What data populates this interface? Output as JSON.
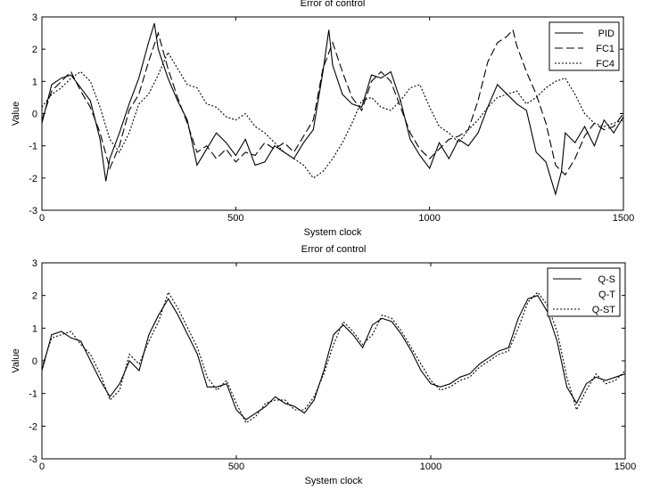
{
  "chart_data": [
    {
      "type": "line",
      "title": "Error of control",
      "xlabel": "System clock",
      "ylabel": "Value",
      "xlim": [
        0,
        1500
      ],
      "ylim": [
        -3,
        3
      ],
      "xticks": [
        0,
        500,
        1000,
        1500
      ],
      "yticks": [
        -3,
        -2,
        -1,
        0,
        1,
        2,
        3
      ],
      "legend_position": "top-right",
      "series": [
        {
          "name": "PID",
          "style": "solid",
          "x": [
            0,
            25,
            50,
            75,
            100,
            125,
            150,
            165,
            175,
            200,
            225,
            250,
            275,
            290,
            300,
            325,
            350,
            375,
            400,
            425,
            450,
            475,
            500,
            525,
            550,
            575,
            600,
            625,
            650,
            675,
            700,
            725,
            740,
            750,
            775,
            800,
            825,
            850,
            875,
            900,
            925,
            950,
            975,
            1000,
            1025,
            1050,
            1075,
            1100,
            1125,
            1150,
            1175,
            1200,
            1225,
            1250,
            1275,
            1300,
            1325,
            1340,
            1350,
            1375,
            1400,
            1425,
            1450,
            1475,
            1500
          ],
          "y": [
            -0.3,
            0.9,
            1.1,
            1.2,
            0.8,
            0.4,
            -0.8,
            -2.1,
            -1.4,
            -0.6,
            0.3,
            1.1,
            2.2,
            2.8,
            2.0,
            1.1,
            0.4,
            -0.2,
            -1.6,
            -1.1,
            -0.6,
            -0.9,
            -1.3,
            -0.8,
            -1.6,
            -1.5,
            -1.0,
            -1.2,
            -1.4,
            -0.9,
            -0.5,
            1.3,
            2.6,
            1.5,
            0.6,
            0.3,
            0.2,
            1.2,
            1.1,
            1.3,
            0.4,
            -0.8,
            -1.3,
            -1.7,
            -0.9,
            -1.4,
            -0.8,
            -1.0,
            -0.6,
            0.2,
            0.9,
            0.6,
            0.3,
            0.1,
            -1.2,
            -1.5,
            -2.5,
            -1.8,
            -0.6,
            -0.9,
            -0.4,
            -1.0,
            -0.2,
            -0.6,
            -0.1
          ]
        },
        {
          "name": "FC1",
          "style": "dashed",
          "x": [
            0,
            25,
            50,
            75,
            100,
            125,
            150,
            175,
            200,
            225,
            250,
            275,
            300,
            325,
            350,
            375,
            400,
            425,
            450,
            475,
            500,
            525,
            550,
            575,
            600,
            625,
            650,
            675,
            700,
            725,
            750,
            775,
            800,
            825,
            850,
            875,
            900,
            925,
            950,
            975,
            1000,
            1025,
            1050,
            1075,
            1100,
            1125,
            1150,
            1175,
            1200,
            1215,
            1225,
            1250,
            1275,
            1300,
            1325,
            1350,
            1375,
            1400,
            1425,
            1450,
            1475,
            1500
          ],
          "y": [
            -0.2,
            0.7,
            1.0,
            1.3,
            0.7,
            0.2,
            -0.6,
            -1.7,
            -1.0,
            0.1,
            0.6,
            1.6,
            2.5,
            1.4,
            0.5,
            -0.3,
            -1.2,
            -1.0,
            -1.4,
            -1.1,
            -1.5,
            -1.2,
            -1.3,
            -0.9,
            -1.1,
            -0.9,
            -1.2,
            -0.7,
            -0.2,
            1.4,
            2.2,
            1.3,
            0.5,
            0.1,
            1.0,
            1.3,
            1.0,
            0.2,
            -0.6,
            -1.1,
            -1.4,
            -1.1,
            -0.8,
            -0.7,
            -0.5,
            0.4,
            1.6,
            2.2,
            2.4,
            2.6,
            2.1,
            1.3,
            0.6,
            -0.3,
            -1.6,
            -1.9,
            -1.4,
            -0.7,
            -0.3,
            -0.5,
            -0.4,
            0.0
          ]
        },
        {
          "name": "FC4",
          "style": "dotted",
          "x": [
            0,
            25,
            50,
            75,
            100,
            125,
            150,
            175,
            200,
            225,
            250,
            275,
            300,
            325,
            350,
            375,
            400,
            425,
            450,
            475,
            500,
            525,
            550,
            575,
            600,
            625,
            650,
            675,
            700,
            725,
            750,
            775,
            800,
            825,
            850,
            875,
            900,
            925,
            950,
            975,
            1000,
            1025,
            1050,
            1075,
            1100,
            1125,
            1150,
            1175,
            1200,
            1225,
            1250,
            1275,
            1300,
            1325,
            1350,
            1375,
            1400,
            1425,
            1450,
            1475,
            1500
          ],
          "y": [
            0.2,
            0.6,
            0.8,
            1.1,
            1.3,
            1.0,
            0.2,
            -0.8,
            -1.2,
            -0.6,
            0.3,
            0.6,
            1.2,
            1.9,
            1.4,
            0.9,
            0.8,
            0.3,
            0.2,
            -0.1,
            -0.2,
            0.0,
            -0.4,
            -0.6,
            -0.9,
            -1.2,
            -1.4,
            -1.6,
            -2.0,
            -1.8,
            -1.4,
            -0.9,
            -0.3,
            0.4,
            0.5,
            0.2,
            0.1,
            0.4,
            0.8,
            0.9,
            0.2,
            -0.4,
            -0.6,
            -0.9,
            -0.5,
            -0.2,
            0.2,
            0.5,
            0.6,
            0.7,
            0.3,
            0.5,
            0.8,
            1.0,
            1.1,
            0.6,
            0.0,
            -0.3,
            -0.4,
            -0.3,
            -0.2
          ]
        }
      ]
    },
    {
      "type": "line",
      "title": "Error of control",
      "xlabel": "System clock",
      "ylabel": "Value",
      "xlim": [
        0,
        1500
      ],
      "ylim": [
        -3,
        3
      ],
      "xticks": [
        0,
        500,
        1000,
        1500
      ],
      "yticks": [
        -3,
        -2,
        -1,
        0,
        1,
        2,
        3
      ],
      "legend_position": "top-right",
      "series": [
        {
          "name": "Q-S",
          "style": "solid",
          "x": [
            0,
            25,
            50,
            75,
            100,
            125,
            150,
            175,
            200,
            225,
            250,
            275,
            300,
            325,
            350,
            375,
            400,
            425,
            450,
            475,
            500,
            525,
            550,
            575,
            600,
            625,
            650,
            675,
            700,
            725,
            750,
            775,
            800,
            825,
            850,
            875,
            900,
            925,
            950,
            975,
            1000,
            1025,
            1050,
            1075,
            1100,
            1125,
            1150,
            1175,
            1200,
            1225,
            1250,
            1275,
            1300,
            1325,
            1350,
            1375,
            1400,
            1425,
            1450,
            1475,
            1500
          ],
          "y": [
            -0.3,
            0.8,
            0.9,
            0.7,
            0.6,
            0.0,
            -0.6,
            -1.1,
            -0.7,
            0.0,
            -0.3,
            0.8,
            1.4,
            1.9,
            1.4,
            0.8,
            0.2,
            -0.8,
            -0.8,
            -0.7,
            -1.5,
            -1.8,
            -1.6,
            -1.4,
            -1.1,
            -1.3,
            -1.4,
            -1.6,
            -1.2,
            -0.3,
            0.8,
            1.1,
            0.8,
            0.4,
            1.1,
            1.3,
            1.2,
            0.8,
            0.3,
            -0.3,
            -0.7,
            -0.8,
            -0.7,
            -0.5,
            -0.4,
            -0.1,
            0.1,
            0.3,
            0.4,
            1.3,
            1.9,
            2.0,
            1.5,
            0.6,
            -0.8,
            -1.3,
            -0.7,
            -0.5,
            -0.6,
            -0.5,
            -0.4
          ]
        },
        {
          "name": "Q-T",
          "style": "none",
          "x": [
            0,
            100,
            200,
            300,
            400,
            500,
            600,
            700,
            800,
            900,
            1000,
            1100,
            1200,
            1300,
            1400,
            1500
          ],
          "y": [
            0.0,
            0.6,
            -0.5,
            1.3,
            -0.6,
            -1.5,
            -1.2,
            -0.9,
            0.7,
            1.1,
            -0.7,
            -0.3,
            0.6,
            1.4,
            -0.6,
            -0.4
          ]
        },
        {
          "name": "Q-ST",
          "style": "dotted",
          "x": [
            0,
            25,
            50,
            75,
            100,
            125,
            150,
            175,
            200,
            225,
            250,
            275,
            300,
            325,
            350,
            375,
            400,
            425,
            450,
            475,
            500,
            525,
            550,
            575,
            600,
            625,
            650,
            675,
            700,
            725,
            750,
            775,
            800,
            825,
            850,
            875,
            900,
            925,
            950,
            975,
            1000,
            1025,
            1050,
            1075,
            1100,
            1125,
            1150,
            1175,
            1200,
            1225,
            1250,
            1275,
            1300,
            1325,
            1350,
            1375,
            1400,
            1425,
            1450,
            1475,
            1500
          ],
          "y": [
            -0.2,
            0.7,
            0.8,
            0.9,
            0.5,
            0.2,
            -0.4,
            -1.2,
            -0.9,
            0.2,
            -0.1,
            0.6,
            1.2,
            2.1,
            1.6,
            1.0,
            0.4,
            -0.5,
            -0.9,
            -0.6,
            -1.3,
            -1.9,
            -1.7,
            -1.3,
            -1.2,
            -1.2,
            -1.5,
            -1.5,
            -1.1,
            -0.4,
            0.5,
            1.2,
            0.9,
            0.5,
            0.8,
            1.4,
            1.3,
            0.9,
            0.4,
            -0.1,
            -0.6,
            -0.9,
            -0.8,
            -0.6,
            -0.5,
            -0.2,
            0.0,
            0.2,
            0.3,
            1.0,
            1.8,
            2.1,
            1.7,
            0.9,
            -0.5,
            -1.5,
            -0.9,
            -0.4,
            -0.7,
            -0.6,
            -0.3
          ]
        }
      ]
    }
  ]
}
